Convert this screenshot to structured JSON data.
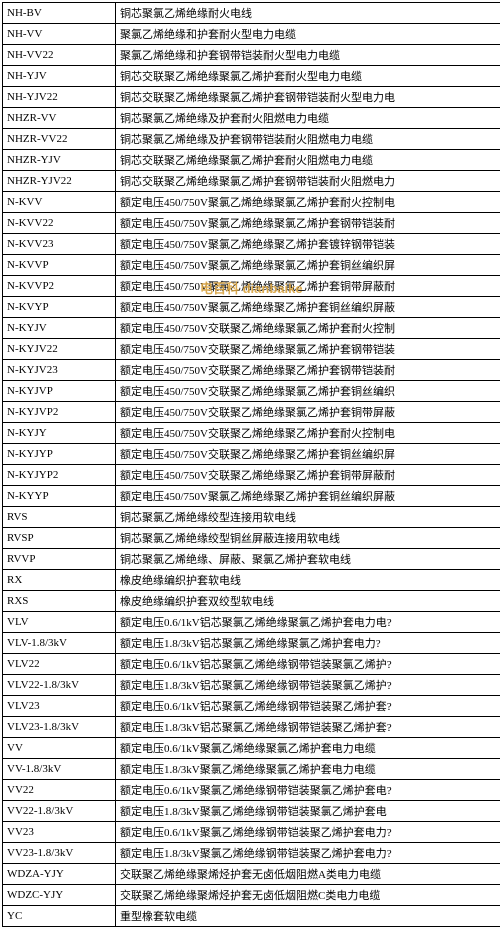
{
  "watermark": "电百科 dianbaike",
  "rows": [
    {
      "code": "NH-BV",
      "desc": "铜芯聚氯乙烯绝缘耐火电线"
    },
    {
      "code": "NH-VV",
      "desc": "聚氯乙烯绝缘和护套耐火型电力电缆"
    },
    {
      "code": "NH-VV22",
      "desc": "聚氯乙烯绝缘和护套钢带铠装耐火型电力电缆"
    },
    {
      "code": "NH-YJV",
      "desc": "铜芯交联聚乙烯绝缘聚氯乙烯护套耐火型电力电缆"
    },
    {
      "code": "NH-YJV22",
      "desc": "铜芯交联聚乙烯绝缘聚氯乙烯护套钢带铠装耐火型电力电"
    },
    {
      "code": "NHZR-VV",
      "desc": "铜芯聚氯乙烯绝缘及护套耐火阻燃电力电缆"
    },
    {
      "code": "NHZR-VV22",
      "desc": "铜芯聚氯乙烯绝缘及护套钢带铠装耐火阻燃电力电缆"
    },
    {
      "code": "NHZR-YJV",
      "desc": "铜芯交联聚乙烯绝缘聚氯乙烯护套耐火阻燃电力电缆"
    },
    {
      "code": "NHZR-YJV22",
      "desc": "铜芯交联聚乙烯绝缘聚氯乙烯护套钢带铠装耐火阻燃电力"
    },
    {
      "code": "N-KVV",
      "desc": "额定电压450/750V聚氯乙烯绝缘聚氯乙烯护套耐火控制电"
    },
    {
      "code": "N-KVV22",
      "desc": "额定电压450/750V聚氯乙烯绝缘聚氯乙烯护套钢带铠装耐"
    },
    {
      "code": "N-KVV23",
      "desc": "额定电压450/750V聚氯乙烯绝缘聚乙烯护套镀锌钢带铠装"
    },
    {
      "code": "N-KVVP",
      "desc": "额定电压450/750V聚氯乙烯绝缘聚氯乙烯护套铜丝编织屏"
    },
    {
      "code": "N-KVVP2",
      "desc": "额定电压450/750V聚氯乙烯绝缘聚氯乙烯护套铜带屏蔽耐"
    },
    {
      "code": "N-KVYP",
      "desc": "额定电压450/750V聚氯乙烯绝缘聚乙烯护套铜丝编织屏蔽"
    },
    {
      "code": "N-KYJV",
      "desc": "额定电压450/750V交联聚乙烯绝缘聚氯乙烯护套耐火控制"
    },
    {
      "code": "N-KYJV22",
      "desc": "额定电压450/750V交联聚乙烯绝缘聚氯乙烯护套钢带铠装"
    },
    {
      "code": "N-KYJV23",
      "desc": "额定电压450/750V交联聚乙烯绝缘聚乙烯护套钢带铠装耐"
    },
    {
      "code": "N-KYJVP",
      "desc": "额定电压450/750V交联聚乙烯绝缘聚氯乙烯护套铜丝编织"
    },
    {
      "code": "N-KYJVP2",
      "desc": "额定电压450/750V交联聚乙烯绝缘聚氯乙烯护套铜带屏蔽"
    },
    {
      "code": "N-KYJY",
      "desc": "额定电压450/750V交联聚乙烯绝缘聚乙烯护套耐火控制电"
    },
    {
      "code": "N-KYJYP",
      "desc": "额定电压450/750V交联聚乙烯绝缘聚乙烯护套铜丝编织屏"
    },
    {
      "code": "N-KYJYP2",
      "desc": "额定电压450/750V交联聚乙烯绝缘聚乙烯护套铜带屏蔽耐"
    },
    {
      "code": "N-KYYP",
      "desc": "额定电压450/750V聚氯乙烯绝缘聚乙烯护套铜丝编织屏蔽"
    },
    {
      "code": "RVS",
      "desc": "铜芯聚氯乙烯绝缘绞型连接用软电线"
    },
    {
      "code": "RVSP",
      "desc": "铜芯聚氯乙烯绝缘绞型铜丝屏蔽连接用软电线"
    },
    {
      "code": "RVVP",
      "desc": "铜芯聚氯乙烯绝缘、屏蔽、聚氯乙烯护套软电线"
    },
    {
      "code": "RX",
      "desc": "橡皮绝缘编织护套软电线"
    },
    {
      "code": "RXS",
      "desc": "橡皮绝缘编织护套双绞型软电线"
    },
    {
      "code": "VLV",
      "desc": "额定电压0.6/1kV铝芯聚氯乙烯绝缘聚氯乙烯护套电力电?"
    },
    {
      "code": "VLV-1.8/3kV",
      "desc": "额定电压1.8/3kV铝芯聚氯乙烯绝缘聚氯乙烯护套电力?"
    },
    {
      "code": "VLV22",
      "desc": "额定电压0.6/1kV铝芯聚氯乙烯绝缘钢带铠装聚氯乙烯护?"
    },
    {
      "code": "VLV22-1.8/3kV",
      "desc": "额定电压1.8/3kV铝芯聚氯乙烯绝缘钢带铠装聚氯乙烯护?"
    },
    {
      "code": "VLV23",
      "desc": "额定电压0.6/1kV铝芯聚氯乙烯绝缘钢带铠装聚乙烯护套?"
    },
    {
      "code": "VLV23-1.8/3kV",
      "desc": "额定电压1.8/3kV铝芯聚氯乙烯绝缘钢带铠装聚乙烯护套?"
    },
    {
      "code": "VV",
      "desc": "额定电压0.6/1kV聚氯乙烯绝缘聚氯乙烯护套电力电缆"
    },
    {
      "code": "VV-1.8/3kV",
      "desc": "额定电压1.8/3kV聚氯乙烯绝缘聚氯乙烯护套电力电缆"
    },
    {
      "code": "VV22",
      "desc": "额定电压0.6/1kV聚氯乙烯绝缘钢带铠装聚氯乙烯护套电?"
    },
    {
      "code": "VV22-1.8/3kV",
      "desc": "额定电压1.8/3kV聚氯乙烯绝缘钢带铠装聚氯乙烯护套电"
    },
    {
      "code": "VV23",
      "desc": "额定电压0.6/1kV聚氯乙烯绝缘钢带铠装聚乙烯护套电力?"
    },
    {
      "code": "VV23-1.8/3kV",
      "desc": "额定电压1.8/3kV聚氯乙烯绝缘钢带铠装聚乙烯护套电力?"
    },
    {
      "code": "WDZA-YJY",
      "desc": "交联聚乙烯绝缘聚烯烃护套无卤低烟阻燃A类电力电缆"
    },
    {
      "code": "WDZC-YJY",
      "desc": "交联聚乙烯绝缘聚烯烃护套无卤低烟阻燃C类电力电缆"
    },
    {
      "code": "YC",
      "desc": "重型橡套软电缆"
    }
  ]
}
